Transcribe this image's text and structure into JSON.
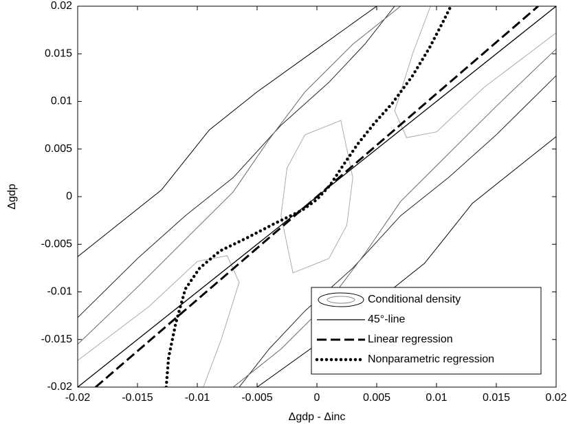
{
  "chart_data": {
    "type": "line",
    "xlabel": "Δgdp - Δinc",
    "ylabel": "Δgdp",
    "xlim": [
      -0.02,
      0.02
    ],
    "ylim": [
      -0.02,
      0.02
    ],
    "xticks": [
      -0.02,
      -0.015,
      -0.01,
      -0.005,
      0,
      0.005,
      0.01,
      0.015,
      0.02
    ],
    "yticks": [
      -0.02,
      -0.015,
      -0.01,
      -0.005,
      0,
      0.005,
      0.01,
      0.015,
      0.02
    ],
    "legend": "lower right",
    "series": [
      {
        "name": "Conditional density",
        "style": "contour",
        "color": "#888888",
        "contours": [
          {
            "color": "#000000",
            "x": [
              -0.02,
              -0.013,
              -0.009,
              -0.005,
              0,
              0.005
            ],
            "y": [
              -0.0063,
              0.0007,
              0.007,
              0.011,
              0.0155,
              0.02
            ]
          },
          {
            "color": "#000000",
            "x": [
              -0.005,
              0,
              0.005,
              0.009,
              0.013,
              0.02
            ],
            "y": [
              -0.02,
              -0.0155,
              -0.011,
              -0.007,
              -0.0007,
              0.0063
            ]
          },
          {
            "color": "#222222",
            "x": [
              -0.02,
              -0.015,
              -0.011,
              -0.007,
              -0.003,
              0.001,
              0.004,
              0.0065
            ],
            "y": [
              -0.0127,
              -0.0065,
              -0.002,
              0.002,
              0.0075,
              0.012,
              0.016,
              0.02
            ]
          },
          {
            "color": "#222222",
            "x": [
              0.02,
              0.015,
              0.011,
              0.007,
              0.003,
              -0.001,
              -0.004,
              -0.0065
            ],
            "y": [
              0.0127,
              0.0065,
              0.002,
              -0.002,
              -0.0075,
              -0.012,
              -0.016,
              -0.02
            ]
          },
          {
            "color": "#666666",
            "x": [
              -0.02,
              -0.015,
              -0.011,
              -0.007,
              -0.004,
              -0.001,
              0.003,
              0.007
            ],
            "y": [
              -0.0155,
              -0.0095,
              -0.0045,
              0.0005,
              0.006,
              0.011,
              0.016,
              0.02
            ]
          },
          {
            "color": "#666666",
            "x": [
              0.02,
              0.015,
              0.011,
              0.007,
              0.004,
              0.001,
              -0.003,
              -0.007
            ],
            "y": [
              0.0155,
              0.0095,
              0.0045,
              -0.0005,
              -0.006,
              -0.011,
              -0.016,
              -0.02
            ]
          },
          {
            "color": "#aaaaaa",
            "x": [
              -0.02,
              -0.014,
              -0.01,
              -0.0075,
              -0.0065,
              -0.008,
              -0.0095
            ],
            "y": [
              -0.0172,
              -0.0115,
              -0.0068,
              -0.0062,
              -0.009,
              -0.015,
              -0.02
            ]
          },
          {
            "color": "#aaaaaa",
            "x": [
              0.02,
              0.014,
              0.01,
              0.0075,
              0.0065,
              0.008,
              0.0095
            ],
            "y": [
              0.0172,
              0.0115,
              0.0068,
              0.0062,
              0.009,
              0.015,
              0.02
            ]
          },
          {
            "color": "#aaaaaa",
            "x": [
              -0.003,
              -0.0025,
              -0.001,
              0.002,
              0.003,
              0.0025,
              0.001,
              -0.002,
              -0.003
            ],
            "y": [
              -0.002,
              0.003,
              0.0065,
              0.008,
              0.002,
              -0.003,
              -0.0065,
              -0.008,
              -0.002
            ]
          }
        ]
      },
      {
        "name": "45°-line",
        "style": "solid",
        "color": "#000000",
        "x": [
          -0.02,
          0.02
        ],
        "y": [
          -0.02,
          0.02
        ]
      },
      {
        "name": "Linear regression",
        "style": "dashed",
        "color": "#000000",
        "x": [
          -0.0185,
          0.0185
        ],
        "y": [
          -0.02,
          0.02
        ]
      },
      {
        "name": "Nonparametric regression",
        "style": "dotted",
        "color": "#000000",
        "x": [
          -0.0126,
          -0.0124,
          -0.0118,
          -0.011,
          -0.0098,
          -0.0081,
          -0.0058,
          -0.0035,
          -0.0012,
          0,
          0.0011,
          0.0022,
          0.0034,
          0.0048,
          0.0063,
          0.008,
          0.0094,
          0.0106,
          0.0112
        ],
        "y": [
          -0.02,
          -0.0169,
          -0.0133,
          -0.0097,
          -0.0075,
          -0.0057,
          -0.0043,
          -0.0028,
          -0.0014,
          -0.0003,
          0.0012,
          0.0033,
          0.0055,
          0.0077,
          0.0098,
          0.0127,
          0.0156,
          0.0185,
          0.02
        ]
      }
    ]
  }
}
